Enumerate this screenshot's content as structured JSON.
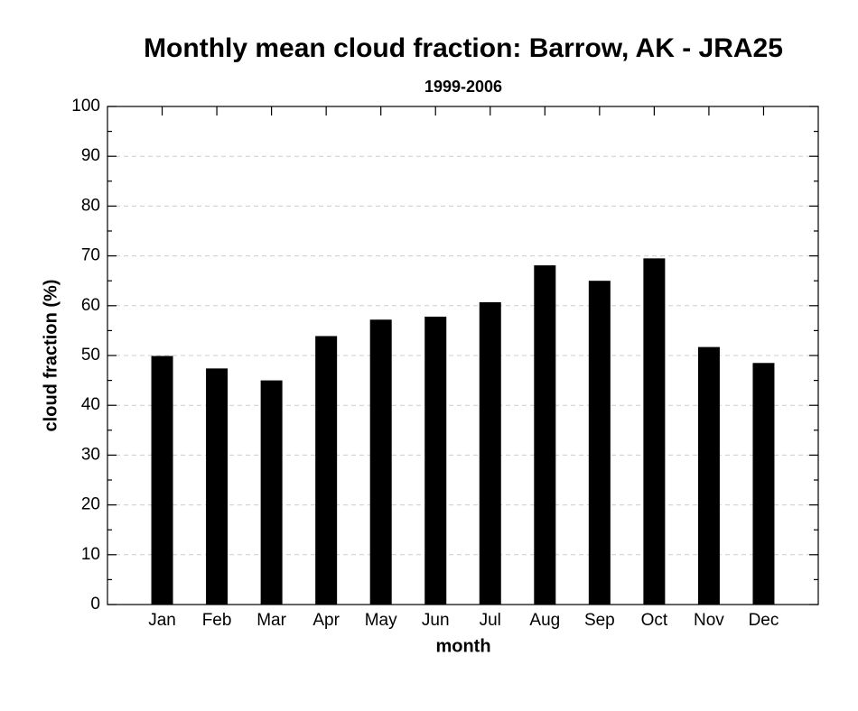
{
  "chart_data": {
    "type": "bar",
    "title": "Monthly mean cloud fraction: Barrow, AK - JRA25",
    "subtitle": "1999-2006",
    "x_label": "month",
    "y_label": "cloud fraction (%)",
    "categories": [
      "Jan",
      "Feb",
      "Mar",
      "Apr",
      "May",
      "Jun",
      "Jul",
      "Aug",
      "Sep",
      "Oct",
      "Nov",
      "Dec"
    ],
    "values": [
      49.9,
      47.4,
      45.0,
      53.9,
      57.2,
      57.8,
      60.7,
      68.1,
      65.0,
      69.5,
      51.7,
      48.5
    ],
    "color": "#000000",
    "ylim": [
      0,
      100
    ],
    "yticks": [
      0,
      10,
      20,
      30,
      40,
      50,
      60,
      70,
      80,
      90,
      100
    ],
    "grid": true
  }
}
